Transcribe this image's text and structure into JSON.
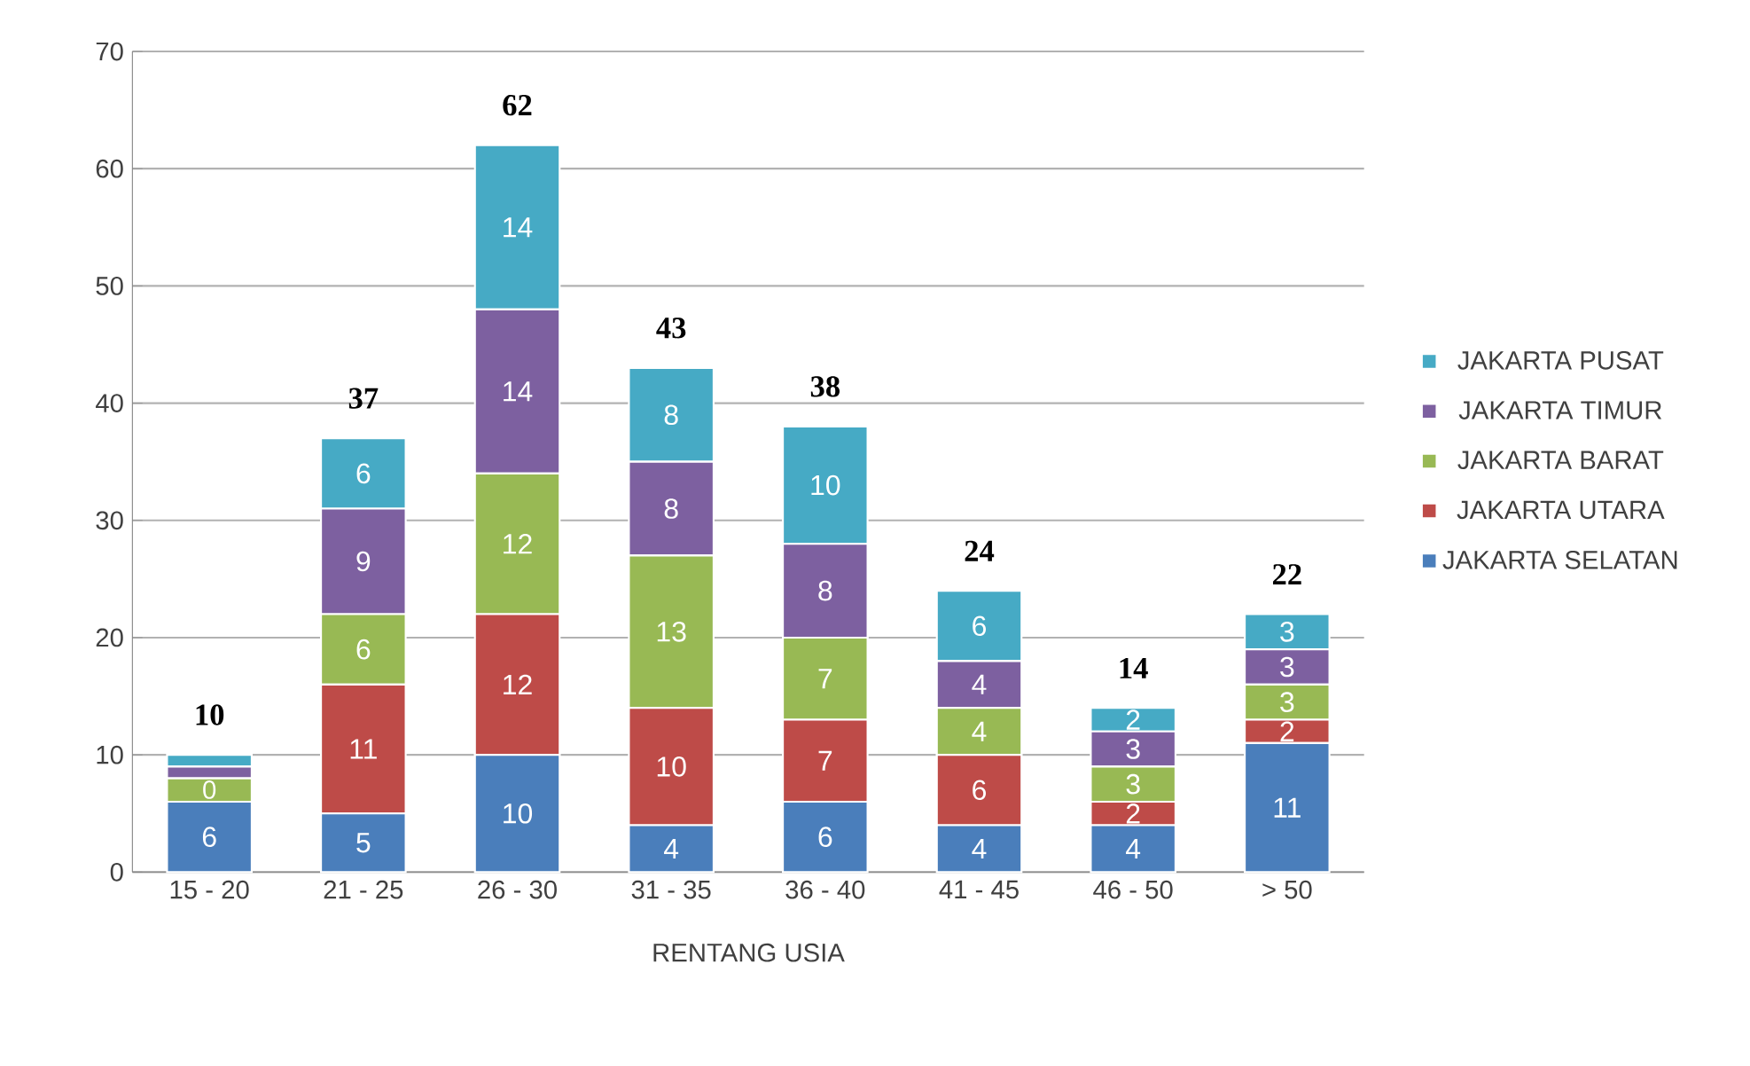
{
  "chart_data": {
    "type": "bar",
    "stacked": true,
    "xlabel": "RENTANG USIA",
    "categories": [
      "15 - 20",
      "21 - 25",
      "26 - 30",
      "31 - 35",
      "36 - 40",
      "41 - 45",
      "46 - 50",
      "> 50"
    ],
    "series": [
      {
        "name": "JAKARTA SELATAN",
        "color": "#4a7ebb",
        "values": [
          6,
          5,
          10,
          4,
          6,
          4,
          4,
          11
        ],
        "value_labels": [
          "6",
          "5",
          "10",
          "4",
          "6",
          "4",
          "4",
          "11"
        ]
      },
      {
        "name": "JAKARTA UTARA",
        "color": "#be4b48",
        "values": [
          0,
          11,
          12,
          10,
          7,
          6,
          2,
          2
        ],
        "value_labels": [
          "0",
          "11",
          "12",
          "10",
          "7",
          "6",
          "2",
          "2"
        ]
      },
      {
        "name": "JAKARTA BARAT",
        "color": "#98b954",
        "values": [
          2,
          6,
          12,
          13,
          7,
          4,
          3,
          3
        ],
        "value_labels": [
          null,
          "6",
          "12",
          "13",
          "7",
          "4",
          "3",
          "3"
        ]
      },
      {
        "name": "JAKARTA TIMUR",
        "color": "#7d60a0",
        "values": [
          1,
          9,
          14,
          8,
          8,
          4,
          3,
          3
        ],
        "value_labels": [
          null,
          "9",
          "14",
          "8",
          "8",
          "4",
          "3",
          "3"
        ]
      },
      {
        "name": "JAKARTA PUSAT",
        "color": "#46aac5",
        "values": [
          1,
          6,
          14,
          8,
          10,
          6,
          2,
          3
        ],
        "value_labels": [
          null,
          "6",
          "14",
          "8",
          "10",
          "6",
          "2",
          "3"
        ]
      }
    ],
    "totals": [
      "10",
      "37",
      "62",
      "43",
      "38",
      "24",
      "14",
      "22"
    ],
    "ylim": [
      0,
      70
    ],
    "yticks": [
      0,
      10,
      20,
      30,
      40,
      50,
      60,
      70
    ],
    "grid": "y",
    "legend": "right"
  }
}
